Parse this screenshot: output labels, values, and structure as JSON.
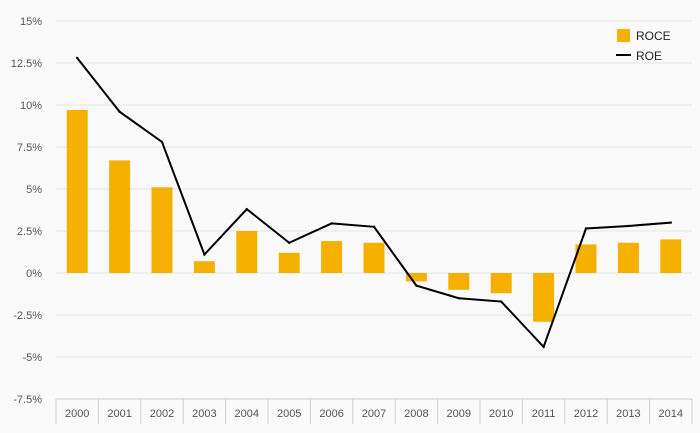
{
  "chart_data": {
    "type": "bar",
    "categories": [
      "2000",
      "2001",
      "2002",
      "2003",
      "2004",
      "2005",
      "2006",
      "2007",
      "2008",
      "2009",
      "2010",
      "2011",
      "2012",
      "2013",
      "2014"
    ],
    "series": [
      {
        "name": "ROCE",
        "type": "bar",
        "color": "#f5b000",
        "values": [
          9.7,
          6.7,
          5.1,
          0.7,
          2.5,
          1.2,
          1.9,
          1.8,
          -0.5,
          -1.0,
          -1.2,
          -2.9,
          1.7,
          1.8,
          2.0
        ]
      },
      {
        "name": "ROE",
        "type": "line",
        "color": "#000000",
        "values": [
          12.8,
          9.6,
          7.8,
          1.1,
          3.8,
          1.8,
          2.95,
          2.75,
          -0.75,
          -1.5,
          -1.7,
          -4.4,
          2.65,
          2.8,
          3.0
        ]
      }
    ],
    "y_ticks": [
      "15%",
      "12.5%",
      "10%",
      "7.5%",
      "5%",
      "2.5%",
      "0%",
      "-2.5%",
      "-5%",
      "-7.5%"
    ],
    "ylim": [
      -7.5,
      15
    ],
    "y_unit": "%",
    "grid": true,
    "legend_position": "top-right",
    "title": "",
    "xlabel": "",
    "ylabel": ""
  }
}
